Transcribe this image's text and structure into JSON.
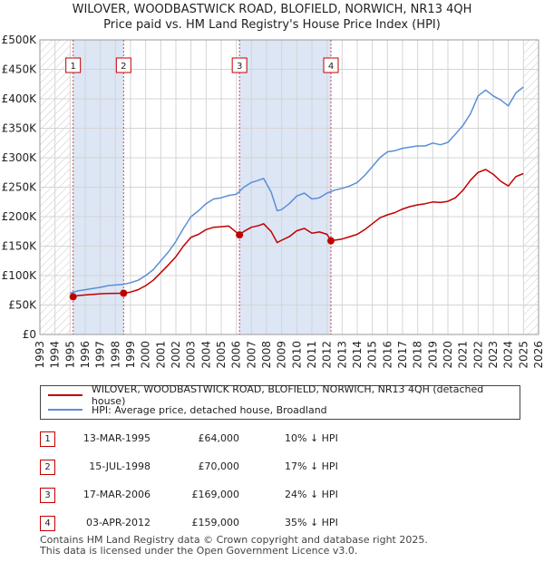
{
  "title_line1": "WILOVER, WOODBASTWICK ROAD, BLOFIELD, NORWICH, NR13 4QH",
  "title_line2": "Price paid vs. HM Land Registry's House Price Index (HPI)",
  "chart_data": {
    "type": "line",
    "x_range": [
      1993,
      2026
    ],
    "ylim": [
      0,
      500000
    ],
    "y_ticks": [
      0,
      50000,
      100000,
      150000,
      200000,
      250000,
      300000,
      350000,
      400000,
      450000,
      500000
    ],
    "y_tick_labels": [
      "£0",
      "£50K",
      "£100K",
      "£150K",
      "£200K",
      "£250K",
      "£300K",
      "£350K",
      "£400K",
      "£450K",
      "£500K"
    ],
    "x_ticks": [
      1993,
      1994,
      1995,
      1996,
      1997,
      1998,
      1999,
      2000,
      2001,
      2002,
      2003,
      2004,
      2005,
      2006,
      2007,
      2008,
      2009,
      2010,
      2011,
      2012,
      2013,
      2014,
      2015,
      2016,
      2017,
      2018,
      2019,
      2020,
      2021,
      2022,
      2023,
      2024,
      2025,
      2026
    ],
    "grid": true,
    "colors": {
      "hpi": "#5b8fd6",
      "price": "#c00000",
      "shade": "#dde6f5",
      "marker_box": "#c00000"
    },
    "series": [
      {
        "name": "HPI: Average price, detached house, Broadland",
        "x": [
          1995.0,
          1995.5,
          1996.0,
          1996.5,
          1997.0,
          1997.5,
          1998.0,
          1998.5,
          1999.0,
          1999.5,
          2000.0,
          2000.5,
          2001.0,
          2001.5,
          2002.0,
          2002.5,
          2003.0,
          2003.5,
          2004.0,
          2004.5,
          2005.0,
          2005.5,
          2006.0,
          2006.5,
          2007.0,
          2007.5,
          2007.8,
          2008.3,
          2008.7,
          2009.0,
          2009.5,
          2010.0,
          2010.5,
          2011.0,
          2011.5,
          2012.0,
          2012.5,
          2013.0,
          2013.5,
          2014.0,
          2014.5,
          2015.0,
          2015.5,
          2016.0,
          2016.5,
          2017.0,
          2017.5,
          2018.0,
          2018.5,
          2019.0,
          2019.5,
          2020.0,
          2020.5,
          2021.0,
          2021.5,
          2022.0,
          2022.5,
          2023.0,
          2023.5,
          2024.0,
          2024.5,
          2025.0
        ],
        "values": [
          70000,
          74000,
          76000,
          78000,
          80000,
          83000,
          84000,
          85000,
          88000,
          92000,
          100000,
          110000,
          125000,
          140000,
          158000,
          180000,
          200000,
          210000,
          222000,
          230000,
          232000,
          236000,
          238000,
          250000,
          258000,
          262000,
          265000,
          242000,
          210000,
          212000,
          222000,
          235000,
          240000,
          230000,
          232000,
          240000,
          245000,
          248000,
          252000,
          258000,
          270000,
          285000,
          300000,
          310000,
          312000,
          316000,
          318000,
          320000,
          320000,
          325000,
          322000,
          326000,
          340000,
          355000,
          375000,
          405000,
          415000,
          405000,
          398000,
          388000,
          410000,
          420000
        ]
      },
      {
        "name": "WILOVER, WOODBASTWICK ROAD, BLOFIELD, NORWICH, NR13 4QH (detached house)",
        "x": [
          1995.2,
          1995.5,
          1996.0,
          1996.5,
          1997.0,
          1997.5,
          1998.54,
          1999.0,
          1999.5,
          2000.0,
          2000.5,
          2001.0,
          2001.5,
          2002.0,
          2002.5,
          2003.0,
          2003.5,
          2004.0,
          2004.5,
          2005.0,
          2005.5,
          2006.21,
          2006.5,
          2007.0,
          2007.5,
          2007.8,
          2008.3,
          2008.7,
          2009.0,
          2009.5,
          2010.0,
          2010.5,
          2011.0,
          2011.5,
          2012.0,
          2012.26,
          2012.5,
          2013.0,
          2013.5,
          2014.0,
          2014.5,
          2015.0,
          2015.5,
          2016.0,
          2016.5,
          2017.0,
          2017.5,
          2018.0,
          2018.5,
          2019.0,
          2019.5,
          2020.0,
          2020.5,
          2021.0,
          2021.5,
          2022.0,
          2022.5,
          2023.0,
          2023.5,
          2024.0,
          2024.5,
          2025.0
        ],
        "values": [
          64000,
          66000,
          67000,
          68000,
          69000,
          69500,
          70000,
          72000,
          76000,
          83000,
          92000,
          105000,
          118000,
          132000,
          150000,
          165000,
          170000,
          178000,
          182000,
          183000,
          184000,
          169000,
          175000,
          182000,
          185000,
          188000,
          175000,
          156000,
          160000,
          166000,
          176000,
          180000,
          172000,
          174000,
          170000,
          159000,
          160000,
          162000,
          166000,
          170000,
          178000,
          188000,
          198000,
          203000,
          207000,
          213000,
          217000,
          220000,
          222000,
          225000,
          224000,
          226000,
          232000,
          245000,
          262000,
          275000,
          280000,
          272000,
          260000,
          252000,
          268000,
          273000
        ]
      }
    ],
    "sale_markers": [
      {
        "id": "1",
        "x": 1995.2,
        "y": 64000
      },
      {
        "id": "2",
        "x": 1998.54,
        "y": 70000
      },
      {
        "id": "3",
        "x": 2006.21,
        "y": 169000
      },
      {
        "id": "4",
        "x": 2012.26,
        "y": 159000
      }
    ],
    "shaded_ranges": [
      [
        1995.2,
        1998.54
      ],
      [
        2006.21,
        2012.26
      ]
    ],
    "hatched_ranges": [
      [
        1993,
        1995.0
      ],
      [
        2025.0,
        2026
      ]
    ]
  },
  "legend": {
    "price_label": "WILOVER, WOODBASTWICK ROAD, BLOFIELD, NORWICH, NR13 4QH (detached house)",
    "hpi_label": "HPI: Average price, detached house, Broadland"
  },
  "sales": [
    {
      "num": "1",
      "date": "13-MAR-1995",
      "price": "£64,000",
      "hpi": "10% ↓ HPI"
    },
    {
      "num": "2",
      "date": "15-JUL-1998",
      "price": "£70,000",
      "hpi": "17% ↓ HPI"
    },
    {
      "num": "3",
      "date": "17-MAR-2006",
      "price": "£169,000",
      "hpi": "24% ↓ HPI"
    },
    {
      "num": "4",
      "date": "03-APR-2012",
      "price": "£159,000",
      "hpi": "35% ↓ HPI"
    }
  ],
  "footer_line1": "Contains HM Land Registry data © Crown copyright and database right 2025.",
  "footer_line2": "This data is licensed under the Open Government Licence v3.0."
}
